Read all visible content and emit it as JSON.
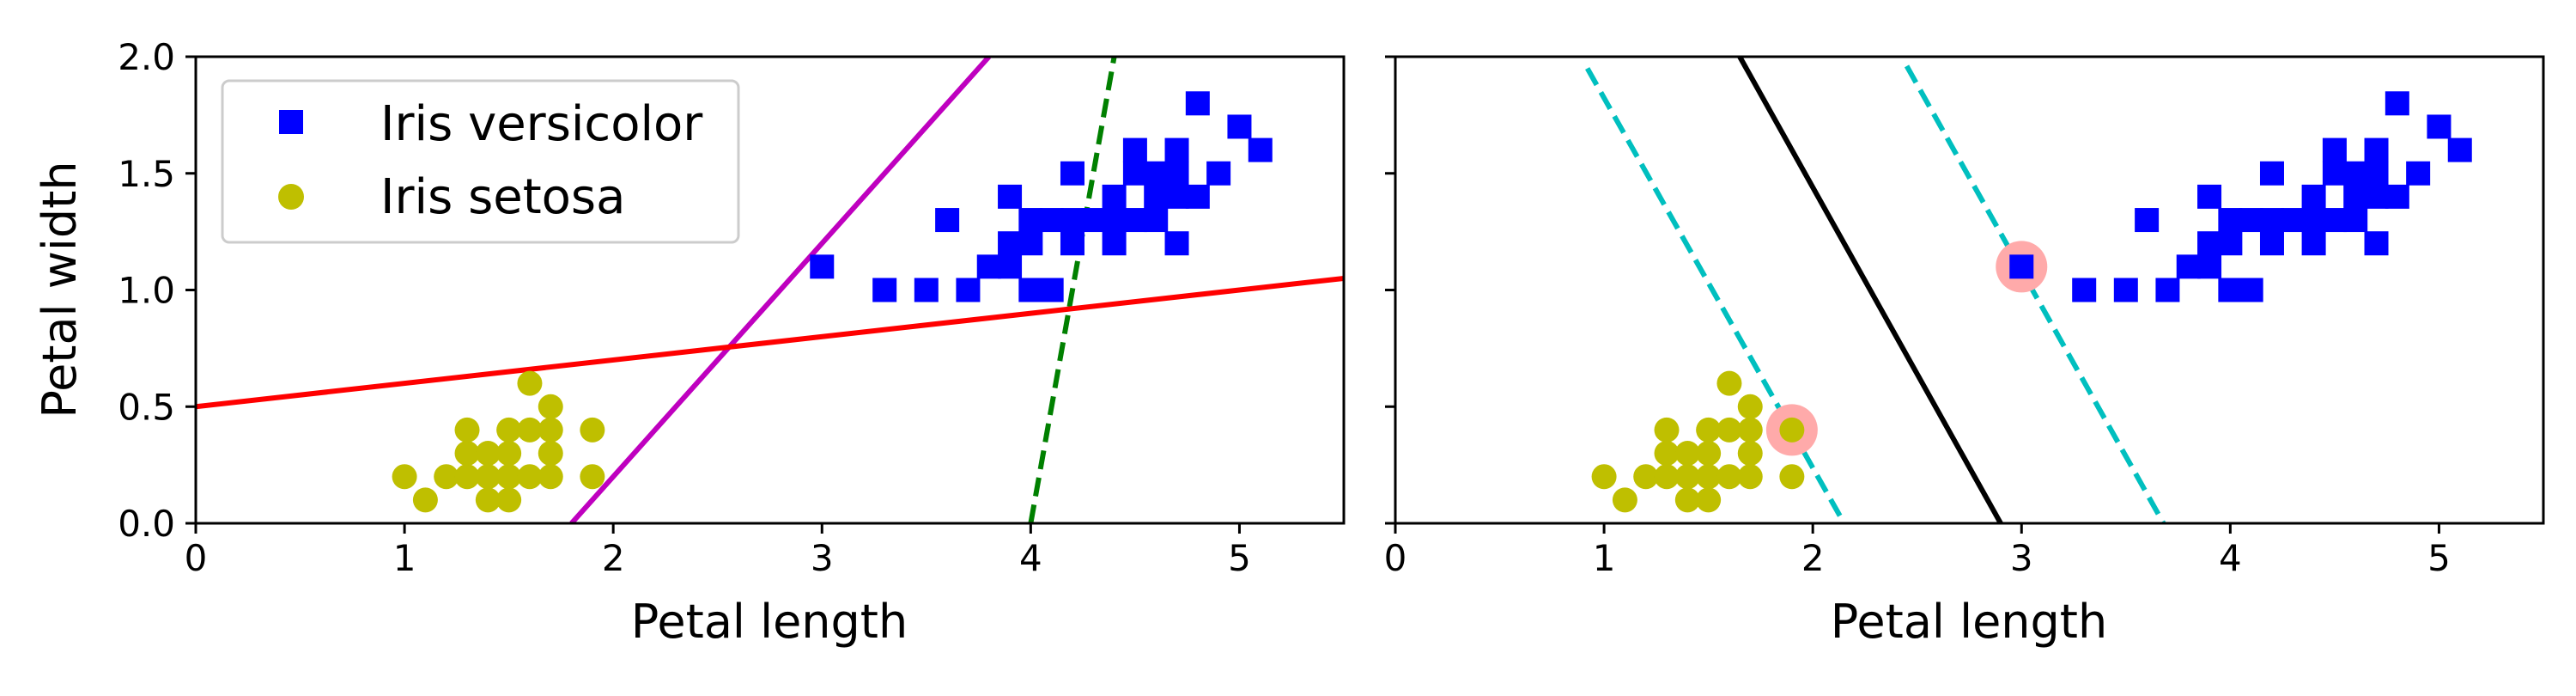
{
  "chart_data": [
    {
      "type": "scatter",
      "title": "",
      "xlabel": "Petal length",
      "ylabel": "Petal width",
      "xlim": [
        0,
        5.5
      ],
      "ylim": [
        0,
        2.0
      ],
      "xticks": [
        0,
        1,
        2,
        3,
        4,
        5
      ],
      "yticks": [
        0.0,
        0.5,
        1.0,
        1.5,
        2.0
      ],
      "grid": false,
      "legend_position": "top-left",
      "series": [
        {
          "name": "Iris versicolor",
          "marker": "square",
          "color": "#0000ff",
          "points": [
            [
              3.0,
              1.1
            ],
            [
              3.3,
              1.0
            ],
            [
              3.5,
              1.0
            ],
            [
              3.6,
              1.3
            ],
            [
              3.7,
              1.0
            ],
            [
              3.8,
              1.1
            ],
            [
              3.9,
              1.1
            ],
            [
              3.9,
              1.2
            ],
            [
              3.9,
              1.4
            ],
            [
              4.0,
              1.0
            ],
            [
              4.0,
              1.2
            ],
            [
              4.0,
              1.3
            ],
            [
              4.1,
              1.0
            ],
            [
              4.1,
              1.3
            ],
            [
              4.2,
              1.2
            ],
            [
              4.2,
              1.3
            ],
            [
              4.2,
              1.5
            ],
            [
              4.3,
              1.3
            ],
            [
              4.4,
              1.2
            ],
            [
              4.4,
              1.3
            ],
            [
              4.4,
              1.4
            ],
            [
              4.5,
              1.3
            ],
            [
              4.5,
              1.5
            ],
            [
              4.5,
              1.6
            ],
            [
              4.6,
              1.3
            ],
            [
              4.6,
              1.4
            ],
            [
              4.6,
              1.5
            ],
            [
              4.7,
              1.2
            ],
            [
              4.7,
              1.4
            ],
            [
              4.7,
              1.5
            ],
            [
              4.7,
              1.6
            ],
            [
              4.8,
              1.4
            ],
            [
              4.8,
              1.8
            ],
            [
              4.9,
              1.5
            ],
            [
              5.0,
              1.7
            ],
            [
              5.1,
              1.6
            ]
          ]
        },
        {
          "name": "Iris setosa",
          "marker": "circle",
          "color": "#bfbf00",
          "points": [
            [
              1.0,
              0.2
            ],
            [
              1.1,
              0.1
            ],
            [
              1.2,
              0.2
            ],
            [
              1.3,
              0.2
            ],
            [
              1.3,
              0.3
            ],
            [
              1.3,
              0.4
            ],
            [
              1.4,
              0.1
            ],
            [
              1.4,
              0.2
            ],
            [
              1.4,
              0.3
            ],
            [
              1.5,
              0.1
            ],
            [
              1.5,
              0.2
            ],
            [
              1.5,
              0.3
            ],
            [
              1.5,
              0.4
            ],
            [
              1.6,
              0.2
            ],
            [
              1.6,
              0.4
            ],
            [
              1.6,
              0.6
            ],
            [
              1.7,
              0.2
            ],
            [
              1.7,
              0.3
            ],
            [
              1.7,
              0.4
            ],
            [
              1.7,
              0.5
            ],
            [
              1.9,
              0.2
            ],
            [
              1.9,
              0.4
            ]
          ]
        }
      ],
      "lines": [
        {
          "style": "dashed",
          "color": "#008000",
          "points": [
            [
              4.0,
              0.0
            ],
            [
              4.4,
              2.0
            ]
          ]
        },
        {
          "style": "solid",
          "color": "#bf00bf",
          "points": [
            [
              1.8,
              0.0
            ],
            [
              3.8,
              2.0
            ]
          ]
        },
        {
          "style": "solid",
          "color": "#ff0000",
          "points": [
            [
              0.0,
              0.5
            ],
            [
              5.5,
              1.05
            ]
          ]
        }
      ],
      "highlighted_points": []
    },
    {
      "type": "scatter",
      "title": "",
      "xlabel": "Petal length",
      "ylabel": "",
      "xlim": [
        0,
        5.5
      ],
      "ylim": [
        0,
        2.0
      ],
      "xticks": [
        0,
        1,
        2,
        3,
        4,
        5
      ],
      "yticks": [
        0.0,
        0.5,
        1.0,
        1.5,
        2.0
      ],
      "grid": false,
      "series": [
        {
          "marker": "square",
          "color": "#0000ff",
          "points": [
            [
              3.0,
              1.1
            ],
            [
              3.3,
              1.0
            ],
            [
              3.5,
              1.0
            ],
            [
              3.6,
              1.3
            ],
            [
              3.7,
              1.0
            ],
            [
              3.8,
              1.1
            ],
            [
              3.9,
              1.1
            ],
            [
              3.9,
              1.2
            ],
            [
              3.9,
              1.4
            ],
            [
              4.0,
              1.0
            ],
            [
              4.0,
              1.2
            ],
            [
              4.0,
              1.3
            ],
            [
              4.1,
              1.0
            ],
            [
              4.1,
              1.3
            ],
            [
              4.2,
              1.2
            ],
            [
              4.2,
              1.3
            ],
            [
              4.2,
              1.5
            ],
            [
              4.3,
              1.3
            ],
            [
              4.4,
              1.2
            ],
            [
              4.4,
              1.3
            ],
            [
              4.4,
              1.4
            ],
            [
              4.5,
              1.3
            ],
            [
              4.5,
              1.5
            ],
            [
              4.5,
              1.6
            ],
            [
              4.6,
              1.3
            ],
            [
              4.6,
              1.4
            ],
            [
              4.6,
              1.5
            ],
            [
              4.7,
              1.2
            ],
            [
              4.7,
              1.4
            ],
            [
              4.7,
              1.5
            ],
            [
              4.7,
              1.6
            ],
            [
              4.8,
              1.4
            ],
            [
              4.8,
              1.8
            ],
            [
              4.9,
              1.5
            ],
            [
              5.0,
              1.7
            ],
            [
              5.1,
              1.6
            ]
          ]
        },
        {
          "marker": "circle",
          "color": "#bfbf00",
          "points": [
            [
              1.0,
              0.2
            ],
            [
              1.1,
              0.1
            ],
            [
              1.2,
              0.2
            ],
            [
              1.3,
              0.2
            ],
            [
              1.3,
              0.3
            ],
            [
              1.3,
              0.4
            ],
            [
              1.4,
              0.1
            ],
            [
              1.4,
              0.2
            ],
            [
              1.4,
              0.3
            ],
            [
              1.5,
              0.1
            ],
            [
              1.5,
              0.2
            ],
            [
              1.5,
              0.3
            ],
            [
              1.5,
              0.4
            ],
            [
              1.6,
              0.2
            ],
            [
              1.6,
              0.4
            ],
            [
              1.6,
              0.6
            ],
            [
              1.7,
              0.2
            ],
            [
              1.7,
              0.3
            ],
            [
              1.7,
              0.4
            ],
            [
              1.7,
              0.5
            ],
            [
              1.9,
              0.2
            ],
            [
              1.9,
              0.4
            ]
          ]
        }
      ],
      "lines": [
        {
          "style": "solid",
          "color": "#000000",
          "points": [
            [
              1.65,
              2.0
            ],
            [
              2.9,
              0.0
            ]
          ]
        },
        {
          "style": "dashed",
          "color": "#00bfbf",
          "points": [
            [
              0.92,
              1.95
            ],
            [
              2.15,
              0.0
            ]
          ]
        },
        {
          "style": "dashed",
          "color": "#00bfbf",
          "points": [
            [
              2.45,
              1.96
            ],
            [
              3.68,
              0.0
            ]
          ]
        }
      ],
      "highlighted_points": [
        [
          3.0,
          1.1
        ],
        [
          1.9,
          0.4
        ]
      ],
      "highlight_color": "#ffaaaa"
    }
  ]
}
